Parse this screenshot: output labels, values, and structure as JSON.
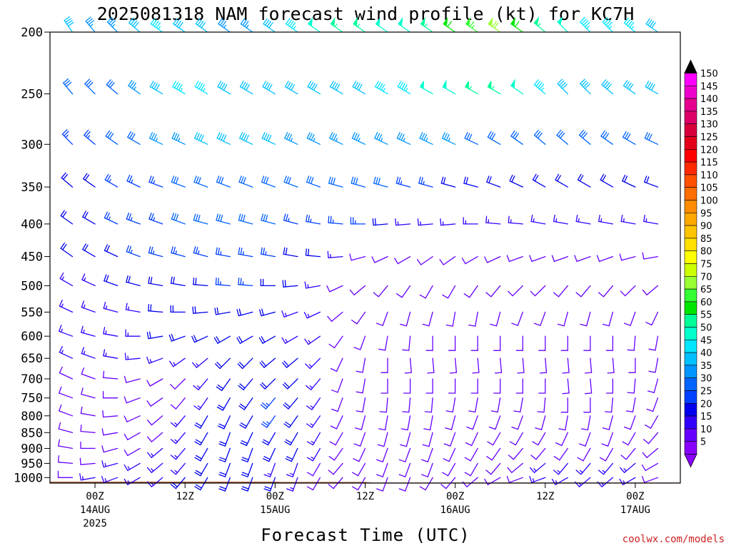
{
  "chart_data": {
    "type": "wind-barb time-height",
    "title": "2025081318 NAM forecast wind profile (kt) for KC7H",
    "xlabel": "Forecast Time (UTC)",
    "ylabel": "",
    "y_scale": "log (pressure, hPa)",
    "ylim": [
      1020,
      200
    ],
    "y_ticks": [
      "200",
      "250",
      "300",
      "350",
      "400",
      "450",
      "500",
      "550",
      "600",
      "650",
      "700",
      "750",
      "800",
      "850",
      "900",
      "950",
      "1000"
    ],
    "x_ticks": [
      {
        "hour": 6,
        "label": "00Z",
        "sub1": "14AUG",
        "sub2": "2025"
      },
      {
        "hour": 18,
        "label": "12Z",
        "sub1": "",
        "sub2": ""
      },
      {
        "hour": 30,
        "label": "00Z",
        "sub1": "15AUG",
        "sub2": ""
      },
      {
        "hour": 42,
        "label": "12Z",
        "sub1": "",
        "sub2": ""
      },
      {
        "hour": 54,
        "label": "00Z",
        "sub1": "16AUG",
        "sub2": ""
      },
      {
        "hour": 66,
        "label": "12Z",
        "sub1": "",
        "sub2": ""
      },
      {
        "hour": 78,
        "label": "00Z",
        "sub1": "17AUG",
        "sub2": ""
      }
    ],
    "xlim": [
      0,
      84
    ],
    "forecast_hours": [
      0,
      3,
      6,
      9,
      12,
      15,
      18,
      21,
      24,
      27,
      30,
      33,
      36,
      39,
      42,
      45,
      48,
      51,
      54,
      57,
      60,
      63,
      66,
      69,
      72,
      75,
      78,
      81,
      84
    ],
    "levels": [
      1000,
      950,
      900,
      850,
      800,
      750,
      700,
      650,
      600,
      550,
      500,
      450,
      400,
      350,
      300,
      250,
      200
    ],
    "ground_pressure": [
      {
        "hour": 0,
        "p": 1015
      },
      {
        "hour": 30,
        "p": 1015
      },
      {
        "hour": 31,
        "p": 1016
      },
      {
        "hour": 42,
        "p": 1016
      },
      {
        "hour": 43,
        "p": 1018
      },
      {
        "hour": 84,
        "p": 1018
      }
    ],
    "wind_direction_deg": [
      [
        280,
        270,
        260,
        250,
        240,
        230,
        220,
        210,
        200,
        200,
        200,
        200,
        210,
        220,
        210,
        200,
        200,
        210,
        220,
        230,
        240,
        250,
        250,
        240,
        230,
        230,
        240,
        250,
        260
      ],
      [
        285,
        275,
        265,
        255,
        240,
        230,
        220,
        210,
        200,
        200,
        200,
        200,
        210,
        220,
        210,
        200,
        200,
        200,
        210,
        210,
        220,
        230,
        230,
        220,
        220,
        220,
        230,
        240,
        250
      ],
      [
        290,
        280,
        270,
        255,
        240,
        230,
        220,
        210,
        200,
        200,
        205,
        205,
        210,
        215,
        205,
        200,
        200,
        200,
        205,
        210,
        215,
        220,
        220,
        215,
        210,
        210,
        220,
        230,
        240
      ],
      [
        290,
        285,
        275,
        260,
        240,
        230,
        220,
        210,
        200,
        205,
        210,
        210,
        210,
        210,
        200,
        195,
        195,
        195,
        200,
        205,
        210,
        210,
        210,
        205,
        200,
        200,
        210,
        220,
        230
      ],
      [
        295,
        290,
        280,
        265,
        245,
        230,
        220,
        210,
        205,
        210,
        215,
        215,
        215,
        205,
        195,
        190,
        190,
        190,
        195,
        200,
        200,
        200,
        195,
        190,
        190,
        195,
        200,
        210,
        220
      ],
      [
        295,
        290,
        285,
        270,
        250,
        235,
        220,
        215,
        210,
        215,
        220,
        220,
        215,
        200,
        190,
        185,
        185,
        185,
        190,
        190,
        190,
        190,
        185,
        180,
        180,
        185,
        190,
        200,
        210
      ],
      [
        295,
        295,
        290,
        275,
        255,
        240,
        225,
        220,
        215,
        220,
        225,
        225,
        220,
        200,
        190,
        180,
        180,
        180,
        180,
        180,
        180,
        180,
        180,
        175,
        175,
        180,
        185,
        195,
        205
      ],
      [
        290,
        295,
        290,
        280,
        265,
        250,
        235,
        230,
        225,
        225,
        230,
        230,
        225,
        205,
        190,
        180,
        175,
        175,
        175,
        175,
        175,
        175,
        175,
        175,
        175,
        175,
        180,
        190,
        200
      ],
      [
        290,
        290,
        285,
        280,
        270,
        260,
        250,
        245,
        240,
        240,
        240,
        240,
        235,
        215,
        200,
        190,
        185,
        180,
        180,
        180,
        180,
        180,
        180,
        180,
        180,
        180,
        185,
        190,
        200
      ],
      [
        295,
        295,
        290,
        285,
        280,
        275,
        270,
        265,
        260,
        255,
        255,
        250,
        245,
        230,
        215,
        200,
        195,
        195,
        190,
        190,
        195,
        200,
        200,
        195,
        195,
        195,
        200,
        205,
        210
      ],
      [
        300,
        300,
        295,
        290,
        285,
        280,
        280,
        275,
        275,
        275,
        270,
        265,
        260,
        245,
        230,
        220,
        215,
        210,
        210,
        215,
        220,
        225,
        225,
        220,
        220,
        220,
        225,
        230,
        240
      ],
      [
        305,
        305,
        300,
        295,
        290,
        285,
        285,
        285,
        280,
        280,
        280,
        280,
        275,
        265,
        255,
        245,
        240,
        235,
        235,
        240,
        245,
        250,
        250,
        250,
        250,
        250,
        255,
        260,
        265
      ],
      [
        310,
        305,
        300,
        295,
        290,
        290,
        290,
        285,
        285,
        285,
        285,
        285,
        280,
        275,
        270,
        265,
        265,
        265,
        265,
        270,
        275,
        275,
        280,
        280,
        280,
        280,
        280,
        280,
        280
      ],
      [
        315,
        310,
        305,
        300,
        295,
        290,
        290,
        290,
        290,
        290,
        290,
        290,
        290,
        285,
        285,
        285,
        285,
        285,
        285,
        285,
        290,
        295,
        300,
        300,
        300,
        300,
        295,
        290,
        285
      ],
      [
        320,
        315,
        310,
        305,
        300,
        295,
        295,
        295,
        295,
        295,
        295,
        295,
        295,
        295,
        295,
        295,
        295,
        295,
        295,
        295,
        300,
        305,
        310,
        310,
        310,
        305,
        300,
        295,
        290
      ],
      [
        325,
        320,
        315,
        310,
        305,
        300,
        300,
        300,
        300,
        300,
        300,
        300,
        300,
        300,
        300,
        300,
        300,
        300,
        300,
        300,
        300,
        305,
        310,
        315,
        315,
        310,
        305,
        300,
        295
      ],
      [
        330,
        325,
        320,
        315,
        310,
        305,
        305,
        305,
        305,
        305,
        305,
        305,
        305,
        305,
        305,
        305,
        305,
        305,
        305,
        305,
        305,
        305,
        310,
        315,
        315,
        315,
        310,
        305,
        300
      ]
    ],
    "wind_speed_kt": [
      [
        10,
        10,
        15,
        15,
        15,
        15,
        20,
        20,
        20,
        20,
        20,
        15,
        10,
        10,
        10,
        10,
        10,
        10,
        10,
        10,
        10,
        10,
        15,
        15,
        15,
        15,
        15,
        10,
        10
      ],
      [
        10,
        10,
        10,
        15,
        15,
        15,
        15,
        20,
        20,
        20,
        15,
        15,
        10,
        10,
        10,
        10,
        10,
        10,
        10,
        10,
        10,
        10,
        15,
        15,
        15,
        15,
        15,
        10,
        10
      ],
      [
        10,
        10,
        10,
        10,
        10,
        15,
        15,
        20,
        20,
        20,
        20,
        20,
        15,
        10,
        10,
        10,
        10,
        10,
        10,
        10,
        10,
        10,
        10,
        10,
        10,
        10,
        10,
        10,
        10
      ],
      [
        10,
        10,
        10,
        10,
        10,
        10,
        15,
        20,
        20,
        20,
        20,
        20,
        15,
        10,
        10,
        10,
        10,
        10,
        10,
        10,
        10,
        10,
        10,
        10,
        10,
        10,
        10,
        10,
        10
      ],
      [
        10,
        10,
        10,
        10,
        10,
        10,
        15,
        20,
        20,
        20,
        25,
        20,
        15,
        10,
        10,
        10,
        10,
        10,
        10,
        10,
        10,
        10,
        10,
        10,
        10,
        10,
        10,
        10,
        10
      ],
      [
        10,
        10,
        10,
        10,
        10,
        10,
        10,
        15,
        20,
        20,
        25,
        20,
        15,
        10,
        10,
        10,
        10,
        10,
        10,
        10,
        10,
        10,
        10,
        10,
        10,
        10,
        10,
        10,
        10
      ],
      [
        10,
        10,
        10,
        10,
        10,
        10,
        10,
        15,
        20,
        20,
        20,
        20,
        15,
        10,
        10,
        10,
        10,
        10,
        10,
        10,
        10,
        10,
        10,
        10,
        10,
        10,
        10,
        10,
        10
      ],
      [
        15,
        15,
        15,
        15,
        15,
        15,
        15,
        15,
        20,
        20,
        20,
        20,
        15,
        10,
        10,
        10,
        10,
        10,
        10,
        10,
        10,
        10,
        10,
        10,
        10,
        10,
        10,
        10,
        10
      ],
      [
        15,
        15,
        15,
        15,
        15,
        20,
        20,
        20,
        20,
        20,
        20,
        15,
        15,
        10,
        10,
        10,
        10,
        10,
        10,
        10,
        10,
        10,
        10,
        10,
        10,
        10,
        10,
        10,
        10
      ],
      [
        15,
        15,
        15,
        15,
        15,
        20,
        20,
        20,
        20,
        20,
        20,
        15,
        15,
        10,
        10,
        10,
        10,
        10,
        10,
        10,
        10,
        10,
        10,
        10,
        10,
        10,
        10,
        10,
        10
      ],
      [
        15,
        15,
        15,
        20,
        20,
        20,
        20,
        20,
        25,
        25,
        20,
        20,
        15,
        10,
        10,
        10,
        10,
        10,
        10,
        10,
        10,
        10,
        10,
        10,
        10,
        10,
        10,
        10,
        10
      ],
      [
        15,
        20,
        20,
        20,
        25,
        25,
        25,
        25,
        25,
        25,
        25,
        20,
        20,
        15,
        10,
        10,
        10,
        10,
        10,
        10,
        10,
        10,
        10,
        10,
        10,
        10,
        10,
        10,
        10
      ],
      [
        20,
        20,
        20,
        25,
        25,
        25,
        30,
        30,
        30,
        30,
        30,
        25,
        25,
        25,
        25,
        20,
        15,
        15,
        15,
        15,
        15,
        15,
        15,
        15,
        15,
        15,
        15,
        15,
        15
      ],
      [
        20,
        20,
        20,
        25,
        25,
        25,
        30,
        30,
        30,
        30,
        30,
        30,
        30,
        30,
        30,
        30,
        25,
        25,
        20,
        20,
        20,
        20,
        20,
        20,
        20,
        20,
        20,
        20,
        20
      ],
      [
        20,
        25,
        25,
        30,
        30,
        35,
        35,
        40,
        40,
        40,
        40,
        35,
        35,
        35,
        35,
        35,
        35,
        35,
        35,
        30,
        30,
        30,
        30,
        30,
        30,
        30,
        30,
        30,
        30
      ],
      [
        25,
        30,
        30,
        30,
        35,
        40,
        45,
        45,
        40,
        40,
        40,
        40,
        40,
        40,
        40,
        45,
        45,
        50,
        50,
        55,
        55,
        50,
        45,
        40,
        40,
        40,
        40,
        40,
        40
      ],
      [
        50,
        40,
        35,
        35,
        40,
        45,
        40,
        40,
        35,
        35,
        40,
        45,
        50,
        55,
        55,
        50,
        50,
        55,
        60,
        65,
        70,
        60,
        55,
        50,
        45,
        45,
        45,
        40,
        40
      ]
    ]
  },
  "colorbar": {
    "labels": [
      "150",
      "145",
      "140",
      "135",
      "130",
      "125",
      "120",
      "115",
      "110",
      "105",
      "100",
      "95",
      "90",
      "85",
      "80",
      "75",
      "70",
      "65",
      "60",
      "55",
      "50",
      "45",
      "40",
      "35",
      "30",
      "25",
      "20",
      "15",
      "10",
      "5"
    ],
    "colors": [
      "#ff00ff",
      "#ee00cc",
      "#e6008f",
      "#dd0066",
      "#d8003a",
      "#e5001a",
      "#ff0000",
      "#ff2a00",
      "#ff5000",
      "#ff6e00",
      "#ff8c00",
      "#ffa800",
      "#ffc400",
      "#ffe000",
      "#ffff00",
      "#ccff00",
      "#99ff33",
      "#33ff33",
      "#00e600",
      "#00ff99",
      "#00ffcc",
      "#00e6ff",
      "#00c0ff",
      "#0096ff",
      "#0064ff",
      "#0040ff",
      "#0000ee",
      "#3300ff",
      "#6600ff",
      "#8800ff"
    ]
  },
  "credit": "coolwx.com/models"
}
